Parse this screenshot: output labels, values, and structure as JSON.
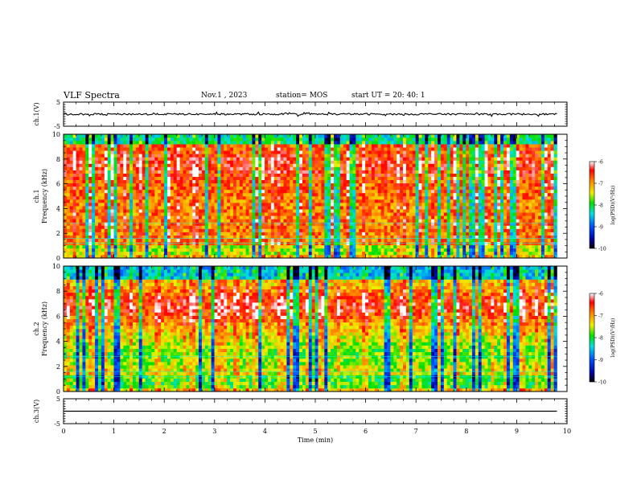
{
  "header": {
    "title": "VLF Spectra",
    "date": "Nov.1 , 2023",
    "station": "station= MOS",
    "start_time": "start UT = 20: 40: 1"
  },
  "chart_data": [
    {
      "type": "line",
      "ylabel": "ch.1(V)",
      "ylim": [
        -5,
        5
      ],
      "yticks": [
        "5",
        "-5"
      ],
      "series": [
        {
          "values": "waveform near 0 V with small noise spikes"
        }
      ]
    },
    {
      "type": "heatmap",
      "ylabel": "ch.1",
      "ylabel2": "Frequency (kHz)",
      "ylim": [
        0,
        10
      ],
      "yticks": [
        "0",
        "2",
        "4",
        "6",
        "8",
        "10"
      ],
      "xlim": [
        0,
        10
      ],
      "colorbar": {
        "label": "log(PSD)(V²/Hz)",
        "ticks": [
          "-6",
          "-7",
          "-8",
          "-9",
          "-10"
        ],
        "range": [
          -10,
          -6
        ]
      }
    },
    {
      "type": "heatmap",
      "ylabel": "ch.2",
      "ylabel2": "Frequency (kHz)",
      "ylim": [
        0,
        10
      ],
      "yticks": [
        "0",
        "2",
        "4",
        "6",
        "8",
        "10"
      ],
      "xlim": [
        0,
        10
      ],
      "colorbar": {
        "label": "log(PSD)(V²/Hz)",
        "ticks": [
          "-6",
          "-7",
          "-8",
          "-9",
          "-10"
        ],
        "range": [
          -10,
          -6
        ]
      }
    },
    {
      "type": "line",
      "ylabel": "ch.3(V)",
      "ylim": [
        -5,
        5
      ],
      "yticks": [
        "5",
        "-5"
      ],
      "series": [
        {
          "values": "flat line at 0 V"
        }
      ]
    }
  ],
  "xaxis": {
    "label": "Time (min)",
    "ticks": [
      "0",
      "1",
      "2",
      "3",
      "4",
      "5",
      "6",
      "7",
      "8",
      "9",
      "10"
    ],
    "range": [
      0,
      10
    ],
    "data_end": 9.8
  }
}
